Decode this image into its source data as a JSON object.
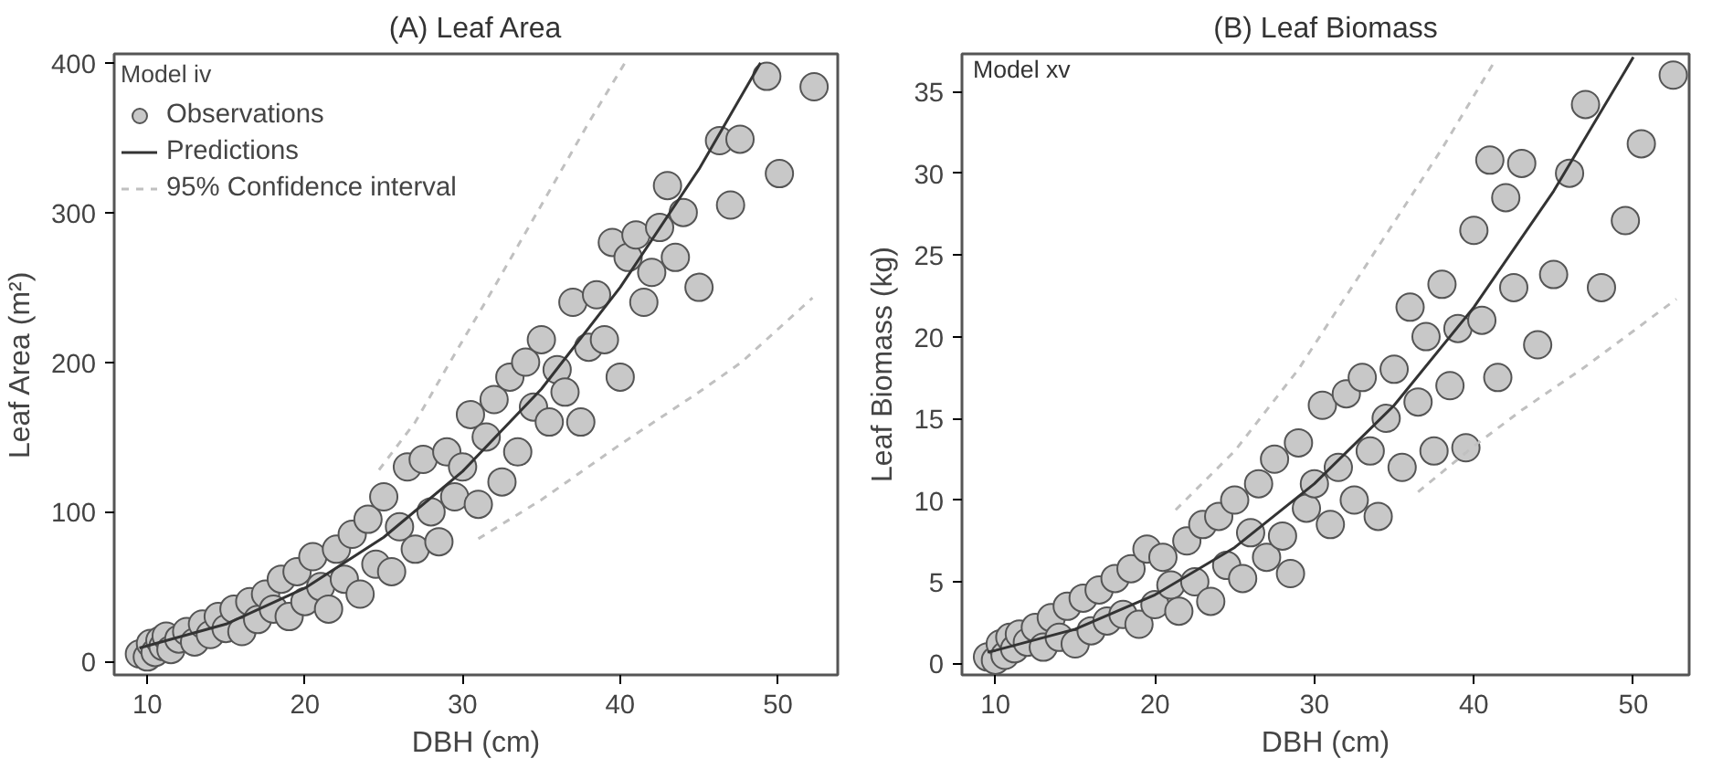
{
  "chart_data": [
    {
      "type": "scatter",
      "title": "(A) Leaf Area",
      "xlabel": "DBH (cm)",
      "ylabel": "Leaf Area (m²)",
      "xlim": [
        7.9,
        53.8
      ],
      "ylim": [
        -9,
        406
      ],
      "xticks": [
        10,
        20,
        30,
        40,
        50
      ],
      "yticks": [
        0,
        100,
        200,
        300,
        400
      ],
      "grid": false,
      "legend": "top left",
      "legend_title": "Model iv",
      "series": [
        {
          "name": "Observations",
          "marker": "circle",
          "color": "#c8c8c8",
          "x": [
            9.5,
            10,
            10.2,
            10.5,
            10.8,
            11,
            11.2,
            11.5,
            12,
            12.5,
            13,
            13.5,
            14,
            14.5,
            15,
            15.5,
            16,
            16.5,
            17,
            17.5,
            18,
            18.5,
            19,
            19.5,
            20,
            20.5,
            21,
            21.5,
            22,
            22.5,
            23,
            23.5,
            24,
            24.5,
            25,
            25.5,
            26,
            26.5,
            27,
            27.5,
            28,
            28.5,
            29,
            29.5,
            30,
            30.5,
            31,
            31.5,
            32,
            32.5,
            33,
            33.5,
            34,
            34.5,
            35,
            35.5,
            36,
            36.5,
            37,
            37.5,
            38,
            38.5,
            39,
            39.5,
            40,
            40.5,
            41,
            41.5,
            42,
            42.5,
            43,
            43.5,
            44,
            45,
            46.3,
            47,
            47.6,
            49.3,
            50.1,
            52.3
          ],
          "values": [
            5,
            3,
            12,
            6,
            14,
            10,
            17,
            8,
            15,
            20,
            13,
            25,
            18,
            30,
            22,
            35,
            20,
            40,
            28,
            45,
            35,
            55,
            30,
            60,
            40,
            70,
            50,
            35,
            75,
            55,
            85,
            45,
            95,
            65,
            110,
            60,
            90,
            130,
            75,
            135,
            100,
            80,
            140,
            110,
            130,
            165,
            105,
            150,
            175,
            120,
            190,
            140,
            200,
            170,
            215,
            160,
            195,
            180,
            240,
            160,
            210,
            245,
            215,
            280,
            190,
            270,
            285,
            240,
            260,
            290,
            318,
            270,
            300,
            250,
            348,
            305,
            349,
            391,
            326,
            384
          ]
        },
        {
          "name": "Predictions",
          "type": "line",
          "line_style": "solid",
          "color": "#333333",
          "x": [
            9.5,
            15,
            20,
            25,
            30,
            35,
            40,
            45,
            48.9
          ],
          "values": [
            9,
            25,
            49,
            83,
            127,
            182,
            250,
            329,
            400
          ]
        },
        {
          "name": "95% Confidence interval",
          "type": "line",
          "line_style": "dashed",
          "color": "#c0c0c0",
          "x": [
            24.7,
            27,
            29.2,
            32,
            35,
            38,
            40.3
          ],
          "values": [
            128,
            160,
            200,
            250,
            305,
            360,
            400
          ]
        },
        {
          "type": "line",
          "line_style": "dashed",
          "color": "#c0c0c0",
          "x": [
            31,
            35,
            40,
            45,
            47.7,
            52.2
          ],
          "values": [
            82,
            108,
            145,
            180,
            200,
            243
          ]
        }
      ]
    },
    {
      "type": "scatter",
      "title": "(B) Leaf Biomass",
      "xlabel": "DBH (cm)",
      "ylabel": "Leaf Biomass (kg)",
      "xlim": [
        7.9,
        53.5
      ],
      "ylim": [
        -0.7,
        37.3
      ],
      "xticks": [
        10,
        20,
        30,
        40,
        50
      ],
      "yticks": [
        0,
        5,
        10,
        15,
        20,
        25,
        30,
        35
      ],
      "grid": false,
      "legend": false,
      "annotations": [
        "Model xv"
      ],
      "series": [
        {
          "marker": "circle",
          "color": "#c8c8c8",
          "x": [
            9.5,
            10,
            10.3,
            10.6,
            10.9,
            11.2,
            11.5,
            12,
            12.5,
            13,
            13.5,
            14,
            14.5,
            15,
            15.5,
            16,
            16.5,
            17,
            17.5,
            18,
            18.5,
            19,
            19.5,
            20,
            20.5,
            21,
            21.5,
            22,
            22.5,
            23,
            23.5,
            24,
            24.5,
            25,
            25.5,
            26,
            26.5,
            27,
            27.5,
            28,
            28.5,
            29,
            29.5,
            30,
            30.5,
            31,
            31.5,
            32,
            32.5,
            33,
            33.5,
            34,
            34.5,
            35,
            35.5,
            36,
            36.5,
            37,
            37.5,
            38,
            38.5,
            39,
            39.5,
            40,
            40.5,
            41,
            41.5,
            42,
            42.5,
            43,
            44,
            45,
            46,
            47,
            48,
            49.5,
            50.5,
            52.5
          ],
          "values": [
            0.4,
            0.2,
            1.2,
            0.5,
            1.6,
            0.9,
            1.8,
            1.3,
            2.2,
            1.0,
            2.8,
            1.6,
            3.5,
            1.2,
            4.0,
            2.0,
            4.5,
            2.6,
            5.2,
            3.0,
            5.8,
            2.4,
            7.0,
            3.6,
            6.5,
            4.8,
            3.2,
            7.5,
            5.0,
            8.5,
            3.8,
            9.0,
            6.0,
            10.0,
            5.2,
            8.0,
            11.0,
            6.5,
            12.5,
            7.8,
            5.5,
            13.5,
            9.5,
            11.0,
            15.8,
            8.5,
            12.0,
            16.5,
            10.0,
            17.5,
            13.0,
            9.0,
            15.0,
            18.0,
            12.0,
            21.8,
            16.0,
            20.0,
            13.0,
            23.2,
            17.0,
            20.5,
            13.2,
            26.5,
            21.0,
            30.8,
            17.5,
            28.5,
            23.0,
            30.6,
            19.5,
            23.8,
            30.0,
            34.2,
            23.0,
            27.1,
            31.8,
            36.0
          ]
        },
        {
          "type": "line",
          "line_style": "solid",
          "color": "#333333",
          "x": [
            9.5,
            10,
            15,
            20,
            25,
            30,
            35,
            40,
            45,
            50
          ],
          "values": [
            0.7,
            0.8,
            2.1,
            4.2,
            7.1,
            11.0,
            15.8,
            21.8,
            28.9,
            37.1
          ]
        },
        {
          "type": "line",
          "line_style": "dashed",
          "color": "#c0c0c0",
          "x": [
            21.3,
            25,
            29,
            32,
            35,
            38,
            41.4
          ],
          "values": [
            9.4,
            13,
            18,
            22.5,
            27,
            31.5,
            37
          ]
        },
        {
          "type": "line",
          "line_style": "dashed",
          "color": "#c0c0c0",
          "x": [
            36.5,
            40,
            43,
            46.9,
            52.7
          ],
          "values": [
            10.5,
            13.3,
            15.5,
            18.1,
            22.3
          ]
        }
      ]
    }
  ]
}
